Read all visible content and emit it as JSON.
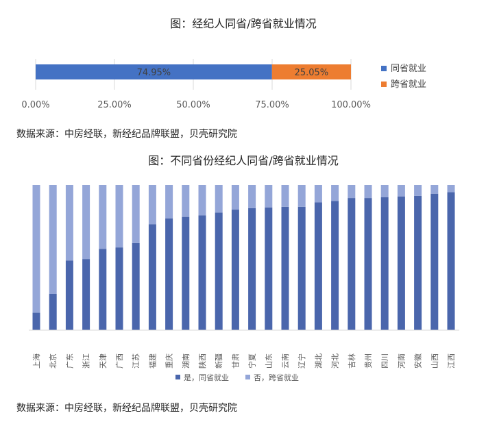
{
  "chart_data": [
    {
      "type": "bar",
      "orientation": "horizontal-stacked-100",
      "title": "图：经纪人同省/跨省就业情况",
      "series": [
        {
          "name": "同省就业",
          "values": [
            74.95
          ],
          "label": "74.95%",
          "color": "#4472C4"
        },
        {
          "name": "跨省就业",
          "values": [
            25.05
          ],
          "label": "25.05%",
          "color": "#ED7D31"
        }
      ],
      "ticks": [
        "0.00%",
        "25.00%",
        "50.00%",
        "75.00%",
        "100.00%"
      ],
      "tick_values": [
        0,
        25,
        50,
        75,
        100
      ],
      "xlim": [
        0,
        100
      ],
      "legend": "right",
      "grid": true,
      "source": "数据来源：中房经联，新经纪品牌联盟，贝壳研究院"
    },
    {
      "type": "bar",
      "orientation": "vertical-stacked-100",
      "title": "图：不同省份经纪人同省/跨省就业情况",
      "categories": [
        "上海",
        "北京",
        "广东",
        "浙江",
        "天津",
        "广西",
        "江苏",
        "福建",
        "重庆",
        "湖南",
        "陕西",
        "新疆",
        "甘肃",
        "宁夏",
        "山东",
        "云南",
        "辽宁",
        "湖北",
        "河北",
        "吉林",
        "贵州",
        "四川",
        "河南",
        "安徽",
        "山西",
        "江西"
      ],
      "series": [
        {
          "name": "是，同省就业",
          "color": "#4A66AC",
          "values": [
            12,
            25,
            48,
            49,
            56,
            57,
            60,
            73,
            77,
            78,
            79,
            81,
            83,
            84,
            84.5,
            85,
            85,
            88,
            89,
            91,
            91,
            91.5,
            92,
            92.5,
            94,
            95
          ]
        },
        {
          "name": "否，跨省就业",
          "color": "#94A6D8",
          "values": [
            88,
            75,
            52,
            51,
            44,
            43,
            40,
            27,
            23,
            22,
            21,
            19,
            17,
            16,
            15.5,
            15,
            15,
            12,
            11,
            9,
            9,
            8.5,
            8,
            7.5,
            6,
            5
          ]
        }
      ],
      "ylim": [
        0,
        100
      ],
      "legend": "bottom",
      "grid": false,
      "source": "数据来源：中房经联，新经纪品牌联盟，贝壳研究院"
    }
  ]
}
